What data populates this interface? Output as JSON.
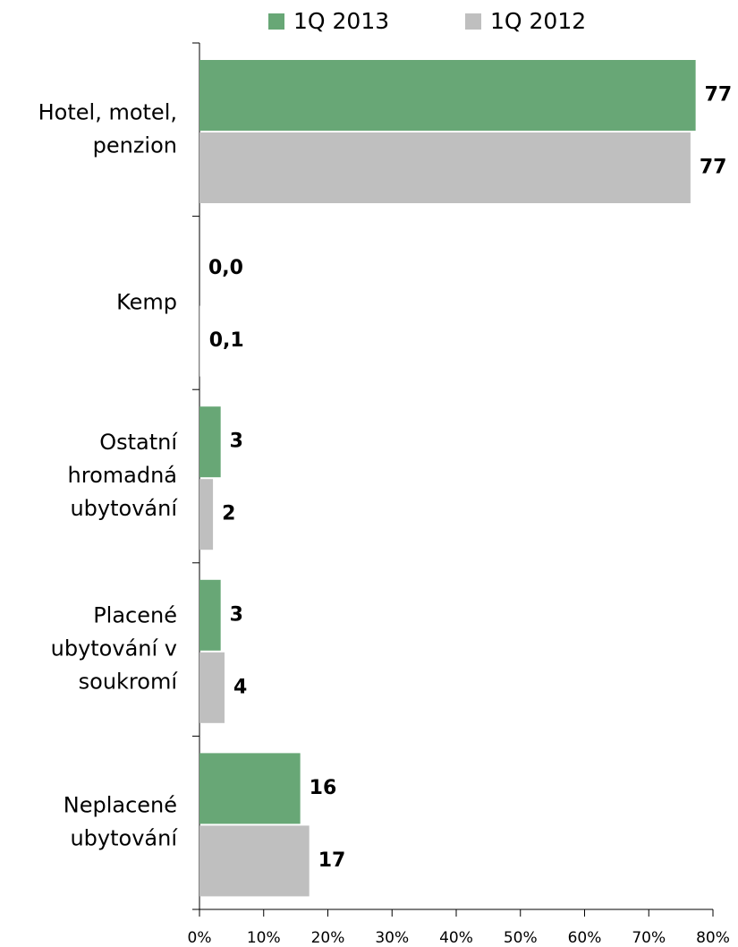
{
  "chart_data": {
    "type": "hbar",
    "categories": [
      "Hotel, motel,\npenzion",
      "Kemp",
      "Ostatní\nhromadná\nubytování",
      "Placené\nubytování v\nsoukromí",
      "Neplacené\nubytování"
    ],
    "series": [
      {
        "name": "1Q 2013",
        "color": "#68a776",
        "values": [
          77.3,
          0.0,
          3.3,
          3.3,
          15.7
        ],
        "value_labels": [
          "77",
          "0,0",
          "3",
          "3",
          "16"
        ]
      },
      {
        "name": "1Q 2012",
        "color": "#bfbfbf",
        "values": [
          76.5,
          0.1,
          2.1,
          3.9,
          17.1
        ],
        "value_labels": [
          "77",
          "0,1",
          "2",
          "4",
          "17"
        ]
      }
    ],
    "xlim": [
      0,
      80
    ],
    "xticks": [
      {
        "value": 0,
        "label": "0%"
      },
      {
        "value": 10,
        "label": "10%"
      },
      {
        "value": 20,
        "label": "20%"
      },
      {
        "value": 30,
        "label": "30%"
      },
      {
        "value": 40,
        "label": "40%"
      },
      {
        "value": 50,
        "label": "50%"
      },
      {
        "value": 60,
        "label": "60%"
      },
      {
        "value": 70,
        "label": "70%"
      },
      {
        "value": 80,
        "label": "80%"
      }
    ],
    "legend": "top"
  }
}
